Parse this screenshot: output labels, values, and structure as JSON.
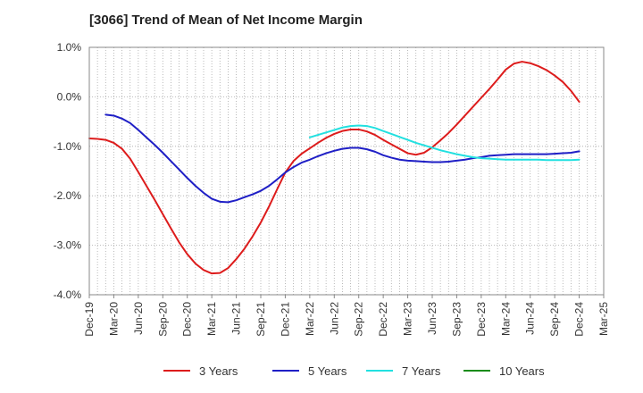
{
  "chart_data": {
    "type": "line",
    "title": "[3066]  Trend of Mean of Net Income Margin",
    "xlabel": "",
    "ylabel": "",
    "x_tick_labels": [
      "Dec-19",
      "Mar-20",
      "Jun-20",
      "Sep-20",
      "Dec-20",
      "Mar-21",
      "Jun-21",
      "Sep-21",
      "Dec-21",
      "Mar-22",
      "Jun-22",
      "Sep-22",
      "Dec-22",
      "Mar-23",
      "Jun-23",
      "Sep-23",
      "Dec-23",
      "Mar-24",
      "Jun-24",
      "Sep-24",
      "Dec-24",
      "Mar-25"
    ],
    "y_tick_labels": [
      "1.0%",
      "0.0%",
      "-1.0%",
      "-2.0%",
      "-3.0%",
      "-4.0%"
    ],
    "y_ticks": [
      1.0,
      0.0,
      -1.0,
      -2.0,
      -3.0,
      -4.0
    ],
    "ylim": [
      -4.0,
      1.0
    ],
    "grid": true,
    "legend_position": "bottom",
    "series": [
      {
        "name": "3 Years",
        "color": "#dd1c1c",
        "points": [
          [
            "Dec-19",
            -0.84
          ],
          [
            "Jan-20",
            -0.85
          ],
          [
            "Feb-20",
            -0.87
          ],
          [
            "Mar-20",
            -0.93
          ],
          [
            "Apr-20",
            -1.05
          ],
          [
            "May-20",
            -1.25
          ],
          [
            "Jun-20",
            -1.52
          ],
          [
            "Jul-20",
            -1.8
          ],
          [
            "Aug-20",
            -2.08
          ],
          [
            "Sep-20",
            -2.37
          ],
          [
            "Oct-20",
            -2.66
          ],
          [
            "Nov-20",
            -2.94
          ],
          [
            "Dec-20",
            -3.18
          ],
          [
            "Jan-21",
            -3.37
          ],
          [
            "Feb-21",
            -3.5
          ],
          [
            "Mar-21",
            -3.57
          ],
          [
            "Apr-21",
            -3.56
          ],
          [
            "May-21",
            -3.46
          ],
          [
            "Jun-21",
            -3.28
          ],
          [
            "Jul-21",
            -3.07
          ],
          [
            "Aug-21",
            -2.82
          ],
          [
            "Sep-21",
            -2.54
          ],
          [
            "Oct-21",
            -2.22
          ],
          [
            "Nov-21",
            -1.87
          ],
          [
            "Dec-21",
            -1.53
          ],
          [
            "Jan-22",
            -1.3
          ],
          [
            "Feb-22",
            -1.15
          ],
          [
            "Mar-22",
            -1.04
          ],
          [
            "Apr-22",
            -0.93
          ],
          [
            "May-22",
            -0.83
          ],
          [
            "Jun-22",
            -0.75
          ],
          [
            "Jul-22",
            -0.69
          ],
          [
            "Aug-22",
            -0.66
          ],
          [
            "Sep-22",
            -0.66
          ],
          [
            "Oct-22",
            -0.7
          ],
          [
            "Nov-22",
            -0.77
          ],
          [
            "Dec-22",
            -0.87
          ],
          [
            "Jan-23",
            -0.96
          ],
          [
            "Feb-23",
            -1.05
          ],
          [
            "Mar-23",
            -1.14
          ],
          [
            "Apr-23",
            -1.17
          ],
          [
            "May-23",
            -1.13
          ],
          [
            "Jun-23",
            -1.02
          ],
          [
            "Jul-23",
            -0.88
          ],
          [
            "Aug-23",
            -0.73
          ],
          [
            "Sep-23",
            -0.56
          ],
          [
            "Oct-23",
            -0.38
          ],
          [
            "Nov-23",
            -0.2
          ],
          [
            "Dec-23",
            -0.02
          ],
          [
            "Jan-24",
            0.16
          ],
          [
            "Feb-24",
            0.35
          ],
          [
            "Mar-24",
            0.55
          ],
          [
            "Apr-24",
            0.67
          ],
          [
            "May-24",
            0.71
          ],
          [
            "Jun-24",
            0.68
          ],
          [
            "Jul-24",
            0.62
          ],
          [
            "Aug-24",
            0.54
          ],
          [
            "Sep-24",
            0.43
          ],
          [
            "Oct-24",
            0.3
          ],
          [
            "Nov-24",
            0.12
          ],
          [
            "Dec-24",
            -0.1
          ]
        ]
      },
      {
        "name": "5 Years",
        "color": "#1f1fc6",
        "points": [
          [
            "Feb-20",
            -0.36
          ],
          [
            "Mar-20",
            -0.38
          ],
          [
            "Apr-20",
            -0.44
          ],
          [
            "May-20",
            -0.53
          ],
          [
            "Jun-20",
            -0.67
          ],
          [
            "Jul-20",
            -0.82
          ],
          [
            "Aug-20",
            -0.97
          ],
          [
            "Sep-20",
            -1.13
          ],
          [
            "Oct-20",
            -1.3
          ],
          [
            "Nov-20",
            -1.47
          ],
          [
            "Dec-20",
            -1.64
          ],
          [
            "Jan-21",
            -1.8
          ],
          [
            "Feb-21",
            -1.94
          ],
          [
            "Mar-21",
            -2.06
          ],
          [
            "Apr-21",
            -2.12
          ],
          [
            "May-21",
            -2.13
          ],
          [
            "Jun-21",
            -2.09
          ],
          [
            "Jul-21",
            -2.03
          ],
          [
            "Aug-21",
            -1.97
          ],
          [
            "Sep-21",
            -1.9
          ],
          [
            "Oct-21",
            -1.8
          ],
          [
            "Nov-21",
            -1.67
          ],
          [
            "Dec-21",
            -1.53
          ],
          [
            "Jan-22",
            -1.42
          ],
          [
            "Feb-22",
            -1.33
          ],
          [
            "Mar-22",
            -1.27
          ],
          [
            "Apr-22",
            -1.2
          ],
          [
            "May-22",
            -1.14
          ],
          [
            "Jun-22",
            -1.09
          ],
          [
            "Jul-22",
            -1.05
          ],
          [
            "Aug-22",
            -1.03
          ],
          [
            "Sep-22",
            -1.03
          ],
          [
            "Oct-22",
            -1.06
          ],
          [
            "Nov-22",
            -1.11
          ],
          [
            "Dec-22",
            -1.18
          ],
          [
            "Jan-23",
            -1.23
          ],
          [
            "Feb-23",
            -1.27
          ],
          [
            "Mar-23",
            -1.29
          ],
          [
            "Apr-23",
            -1.3
          ],
          [
            "May-23",
            -1.31
          ],
          [
            "Jun-23",
            -1.32
          ],
          [
            "Jul-23",
            -1.32
          ],
          [
            "Aug-23",
            -1.31
          ],
          [
            "Sep-23",
            -1.29
          ],
          [
            "Oct-23",
            -1.27
          ],
          [
            "Nov-23",
            -1.24
          ],
          [
            "Dec-23",
            -1.22
          ],
          [
            "Jan-24",
            -1.19
          ],
          [
            "Feb-24",
            -1.18
          ],
          [
            "Mar-24",
            -1.17
          ],
          [
            "Apr-24",
            -1.16
          ],
          [
            "May-24",
            -1.16
          ],
          [
            "Jun-24",
            -1.16
          ],
          [
            "Jul-24",
            -1.16
          ],
          [
            "Aug-24",
            -1.16
          ],
          [
            "Sep-24",
            -1.15
          ],
          [
            "Oct-24",
            -1.14
          ],
          [
            "Nov-24",
            -1.13
          ],
          [
            "Dec-24",
            -1.1
          ]
        ]
      },
      {
        "name": "7 Years",
        "color": "#22e0e0",
        "points": [
          [
            "Mar-22",
            -0.82
          ],
          [
            "Apr-22",
            -0.77
          ],
          [
            "May-22",
            -0.72
          ],
          [
            "Jun-22",
            -0.67
          ],
          [
            "Jul-22",
            -0.62
          ],
          [
            "Aug-22",
            -0.59
          ],
          [
            "Sep-22",
            -0.58
          ],
          [
            "Oct-22",
            -0.59
          ],
          [
            "Nov-22",
            -0.63
          ],
          [
            "Dec-22",
            -0.69
          ],
          [
            "Jan-23",
            -0.75
          ],
          [
            "Feb-23",
            -0.81
          ],
          [
            "Mar-23",
            -0.87
          ],
          [
            "Apr-23",
            -0.93
          ],
          [
            "May-23",
            -0.98
          ],
          [
            "Jun-23",
            -1.03
          ],
          [
            "Jul-23",
            -1.08
          ],
          [
            "Aug-23",
            -1.12
          ],
          [
            "Sep-23",
            -1.16
          ],
          [
            "Oct-23",
            -1.19
          ],
          [
            "Nov-23",
            -1.22
          ],
          [
            "Dec-23",
            -1.24
          ],
          [
            "Jan-24",
            -1.25
          ],
          [
            "Feb-24",
            -1.26
          ],
          [
            "Mar-24",
            -1.27
          ],
          [
            "Apr-24",
            -1.27
          ],
          [
            "May-24",
            -1.27
          ],
          [
            "Jun-24",
            -1.27
          ],
          [
            "Jul-24",
            -1.27
          ],
          [
            "Aug-24",
            -1.28
          ],
          [
            "Sep-24",
            -1.28
          ],
          [
            "Oct-24",
            -1.28
          ],
          [
            "Nov-24",
            -1.28
          ],
          [
            "Dec-24",
            -1.27
          ]
        ]
      },
      {
        "name": "10 Years",
        "color": "#1a8c1a",
        "points": []
      }
    ]
  }
}
